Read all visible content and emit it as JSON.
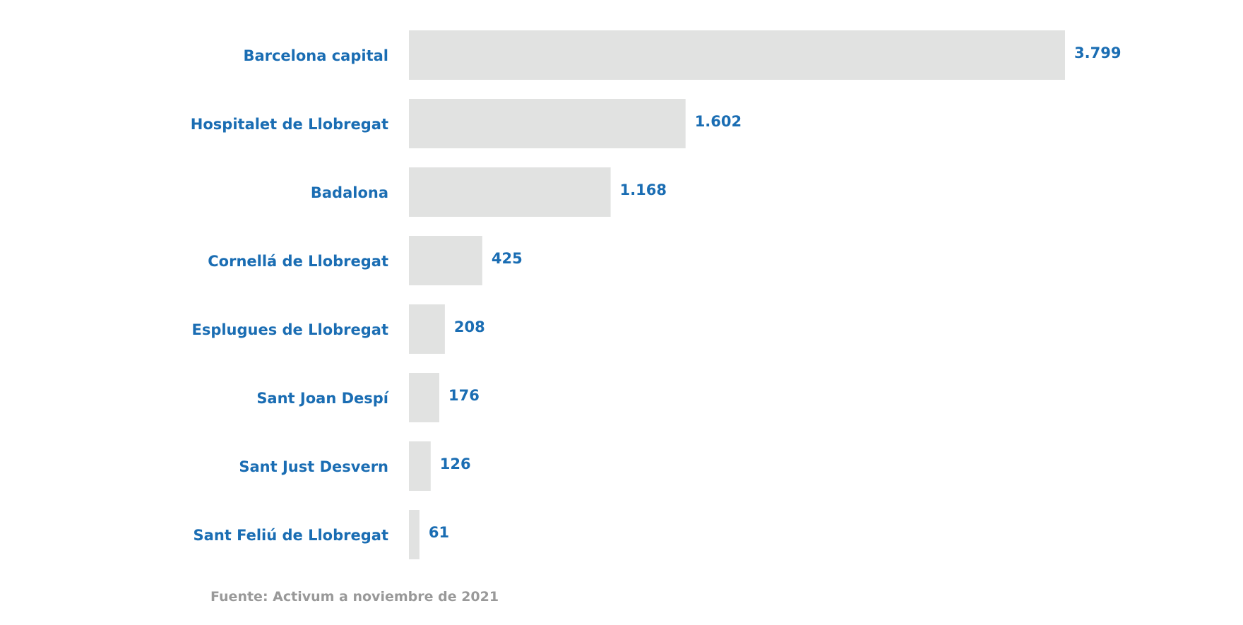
{
  "chart_data": {
    "type": "bar",
    "orientation": "horizontal",
    "categories": [
      "Barcelona capital",
      "Hospitalet de Llobregat",
      "Badalona",
      "Cornellá de Llobregat",
      "Esplugues de Llobregat",
      "Sant Joan Despí",
      "Sant Just Desvern",
      "Sant Feliú de Llobregat"
    ],
    "values": [
      3799,
      1602,
      1168,
      425,
      208,
      176,
      126,
      61
    ],
    "value_labels": [
      "3.799",
      "1.602",
      "1.168",
      "425",
      "208",
      "176",
      "126",
      "61"
    ],
    "title": "",
    "xlabel": "",
    "ylabel": "",
    "xlim": [
      0,
      3799
    ],
    "grid": false,
    "legend": "none",
    "colors": {
      "bar": "#e1e2e1",
      "label": "#1a6db3",
      "note": "#999999"
    }
  },
  "source_note": "Fuente: Activum a noviembre de 2021"
}
